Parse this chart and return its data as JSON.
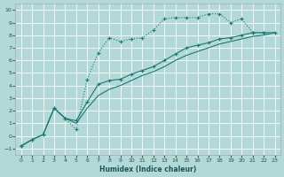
{
  "xlabel": "Humidex (Indice chaleur)",
  "bg_color": "#b2d8d8",
  "grid_color": "#ffffff",
  "line_color": "#1a7a6e",
  "xlim": [
    -0.5,
    23.5
  ],
  "ylim": [
    -1.5,
    10.5
  ],
  "xticks": [
    0,
    1,
    2,
    3,
    4,
    5,
    6,
    7,
    8,
    9,
    10,
    11,
    12,
    13,
    14,
    15,
    16,
    17,
    18,
    19,
    20,
    21,
    22,
    23
  ],
  "yticks": [
    -1,
    0,
    1,
    2,
    3,
    4,
    5,
    6,
    7,
    8,
    9,
    10
  ],
  "line1_x": [
    0,
    1,
    2,
    3,
    4,
    5,
    6,
    7,
    8,
    9,
    10,
    11,
    12,
    13,
    14,
    15,
    16,
    17,
    18,
    19,
    20,
    21,
    22
  ],
  "line1_y": [
    -0.8,
    -0.3,
    0.1,
    2.2,
    1.4,
    0.5,
    4.5,
    6.6,
    7.8,
    7.5,
    7.7,
    7.8,
    8.4,
    9.3,
    9.4,
    9.4,
    9.4,
    9.7,
    9.7,
    9.0,
    9.3,
    8.2,
    8.2
  ],
  "line2_x": [
    0,
    1,
    2,
    3,
    4,
    5,
    6,
    7,
    8,
    9,
    10,
    11,
    12,
    13,
    14,
    15,
    16,
    17,
    18,
    19,
    20,
    21,
    22,
    23
  ],
  "line2_y": [
    -0.8,
    -0.3,
    0.1,
    2.2,
    1.4,
    1.2,
    2.7,
    4.1,
    4.4,
    4.5,
    4.9,
    5.2,
    5.5,
    6.0,
    6.5,
    7.0,
    7.2,
    7.4,
    7.7,
    7.8,
    8.0,
    8.2,
    8.2,
    8.2
  ],
  "line3_x": [
    0,
    1,
    2,
    3,
    4,
    5,
    6,
    7,
    8,
    9,
    10,
    11,
    12,
    13,
    14,
    15,
    16,
    17,
    18,
    19,
    20,
    21,
    22,
    23
  ],
  "line3_y": [
    -0.8,
    -0.3,
    0.1,
    2.2,
    1.4,
    1.0,
    2.2,
    3.2,
    3.7,
    4.0,
    4.4,
    4.8,
    5.1,
    5.5,
    6.0,
    6.4,
    6.7,
    7.0,
    7.3,
    7.5,
    7.7,
    7.9,
    8.0,
    8.2
  ]
}
